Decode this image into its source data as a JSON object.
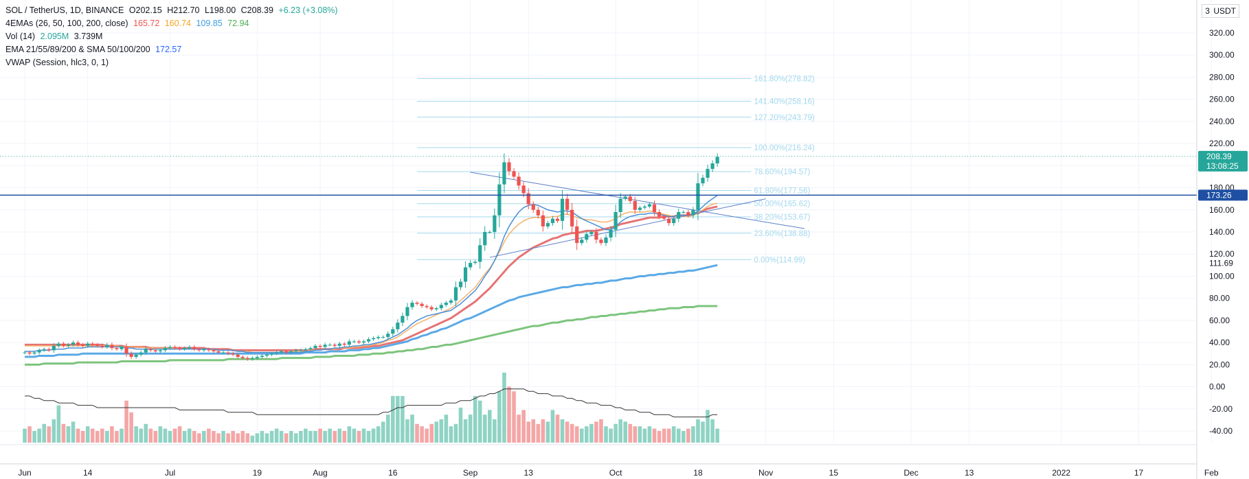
{
  "legend": {
    "symbol": "SOL / TetherUS, 1D, BINANCE",
    "open": "O202.15",
    "high": "H212.70",
    "low": "L198.00",
    "close": "C208.39",
    "change": "+6.23 (+3.08%)",
    "ema4_label": "4EMAs (26, 50, 100, 200, close)",
    "ema4_values": [
      "165.72",
      "160.74",
      "109.85",
      "72.94"
    ],
    "vol_label": "Vol (14)",
    "vol_values": [
      "2.095M",
      "3.739M"
    ],
    "ema_sma_label": "EMA 21/55/89/200 & SMA 50/100/200",
    "ema_sma_value": "172.57",
    "vwap_label": "VWAP (Session, hlc3, 0, 1)"
  },
  "currency": {
    "prefix": "3",
    "unit": "USDT"
  },
  "colors": {
    "up": "#26a69a",
    "down": "#ef5350",
    "vol_up": "#8fd3c4",
    "vol_down": "#f4a6a6",
    "ema_red": "#e57373",
    "ema_orange": "#f5b26b",
    "ema_blue": "#5aa9e6",
    "ema_green": "#7cc47c",
    "fib": "#a3d8ee",
    "hline": "#1e4fa3",
    "trend": "#5b7ec8",
    "vol_ma": "#333333"
  },
  "chart_data": {
    "type": "candlestick",
    "symbol": "SOL / TetherUS",
    "timeframe": "1D",
    "exchange": "BINANCE",
    "y_ticks": [
      "320.00",
      "300.00",
      "280.00",
      "260.00",
      "240.00",
      "220.00",
      "200.00",
      "180.00",
      "160.00",
      "140.00",
      "120.00",
      "100.00",
      "80.00",
      "60.00",
      "40.00",
      "20.00",
      "0.00",
      "-20.00",
      "-40.00"
    ],
    "y_tick_values": [
      320,
      300,
      280,
      260,
      240,
      220,
      200,
      180,
      160,
      140,
      120,
      100,
      80,
      60,
      40,
      20,
      0,
      -20,
      -40
    ],
    "ylim": [
      -50,
      335
    ],
    "x_ticks": [
      {
        "label": "Jun",
        "day": 0
      },
      {
        "label": "14",
        "day": 13
      },
      {
        "label": "Jul",
        "day": 30
      },
      {
        "label": "19",
        "day": 48
      },
      {
        "label": "Aug",
        "day": 61
      },
      {
        "label": "16",
        "day": 76
      },
      {
        "label": "Sep",
        "day": 92
      },
      {
        "label": "13",
        "day": 104
      },
      {
        "label": "Oct",
        "day": 122
      },
      {
        "label": "18",
        "day": 139
      },
      {
        "label": "Nov",
        "day": 153
      },
      {
        "label": "15",
        "day": 167
      },
      {
        "label": "Dec",
        "day": 183
      },
      {
        "label": "13",
        "day": 195
      },
      {
        "label": "2022",
        "day": 214
      },
      {
        "label": "17",
        "day": 230
      },
      {
        "label": "Feb",
        "day": 245
      }
    ],
    "x_range_days": [
      -4,
      252
    ],
    "price_labels": [
      {
        "label": "208.39",
        "sub": "13:08:25",
        "value": 208.39,
        "color": "#26a69a"
      },
      {
        "label": "173.26",
        "value": 173.26,
        "color": "#1e4fa3"
      },
      {
        "label": "111.69",
        "value": 111.69,
        "color": "none"
      }
    ],
    "horizontal_line": 173.26,
    "last_price": 208.39,
    "fib_levels": [
      {
        "label": "161.80%(278.82)",
        "value": 278.82
      },
      {
        "label": "141.40%(258.16)",
        "value": 258.16
      },
      {
        "label": "127.20%(243.79)",
        "value": 243.79
      },
      {
        "label": "100.00%(216.24)",
        "value": 216.24
      },
      {
        "label": "78.60%(194.57)",
        "value": 194.57
      },
      {
        "label": "61.80%(177.56)",
        "value": 177.56
      },
      {
        "label": "50.00%(165.62)",
        "value": 165.62
      },
      {
        "label": "38.20%(153.67)",
        "value": 153.67
      },
      {
        "label": "23.60%(138.88)",
        "value": 138.88
      },
      {
        "label": "0.00%(114.99)",
        "value": 114.99
      }
    ],
    "fib_x_days": [
      81,
      150
    ],
    "trendlines": [
      {
        "x1": 92,
        "y1": 194,
        "x2": 161,
        "y2": 143
      },
      {
        "x1": 96,
        "y1": 117,
        "x2": 153,
        "y2": 170
      }
    ],
    "candles_close": [
      31,
      30,
      31,
      33,
      34,
      33,
      37,
      39,
      37,
      38,
      40,
      38,
      37,
      39,
      38,
      37,
      36,
      38,
      35,
      34,
      36,
      30,
      27,
      29,
      31,
      34,
      33,
      32,
      33,
      35,
      36,
      35,
      34,
      35,
      36,
      34,
      33,
      34,
      33,
      32,
      31,
      31,
      30,
      29,
      27,
      26,
      25,
      26,
      27,
      28,
      29,
      30,
      31,
      32,
      31,
      32,
      33,
      33,
      34,
      35,
      37,
      36,
      38,
      38,
      37,
      39,
      38,
      41,
      41,
      40,
      41,
      43,
      44,
      45,
      45,
      48,
      52,
      58,
      64,
      72,
      76,
      75,
      73,
      72,
      70,
      71,
      74,
      76,
      78,
      90,
      95,
      108,
      112,
      113,
      128,
      140,
      140,
      155,
      183,
      203,
      195,
      190,
      182,
      175,
      165,
      160,
      155,
      145,
      148,
      152,
      150,
      170,
      160,
      145,
      130,
      133,
      138,
      140,
      133,
      130,
      135,
      142,
      158,
      170,
      172,
      168,
      160,
      162,
      163,
      165,
      158,
      154,
      152,
      148,
      152,
      158,
      158,
      155,
      160,
      184,
      189,
      197,
      202,
      208
    ],
    "ema_red_values": [
      38,
      38,
      38,
      38,
      38,
      38,
      38,
      38,
      38,
      38,
      38,
      38,
      38,
      38,
      38,
      38,
      38,
      37,
      37,
      37,
      37,
      36,
      36,
      36,
      36,
      36,
      35,
      35,
      35,
      35,
      35,
      35,
      35,
      35,
      35,
      35,
      35,
      35,
      34,
      34,
      34,
      34,
      34,
      33,
      33,
      33,
      33,
      33,
      33,
      33,
      33,
      33,
      33,
      33,
      33,
      33,
      33,
      33,
      33,
      33,
      34,
      34,
      34,
      34,
      34,
      34,
      35,
      35,
      35,
      35,
      36,
      36,
      37,
      37,
      38,
      39,
      40,
      41,
      42,
      44,
      46,
      48,
      50,
      52,
      54,
      56,
      58,
      60,
      62,
      65,
      68,
      71,
      74,
      77,
      81,
      85,
      89,
      94,
      99,
      104,
      109,
      113,
      117,
      120,
      123,
      126,
      128,
      130,
      132,
      134,
      135,
      137,
      138,
      139,
      139,
      140,
      141,
      141,
      141,
      142,
      143,
      144,
      145,
      147,
      148,
      149,
      150,
      151,
      152,
      153,
      153,
      153,
      154,
      154,
      154,
      155,
      155,
      155,
      156,
      157,
      159,
      161,
      162,
      163
    ],
    "ema_orange_values": [
      37,
      37,
      37,
      37,
      37,
      37,
      37,
      37,
      37,
      37,
      37,
      37,
      37,
      37,
      37,
      37,
      37,
      37,
      37,
      37,
      36,
      36,
      36,
      36,
      36,
      35,
      35,
      35,
      35,
      35,
      35,
      35,
      34,
      34,
      34,
      34,
      34,
      34,
      34,
      33,
      33,
      33,
      33,
      33,
      32,
      32,
      32,
      31,
      31,
      31,
      31,
      31,
      31,
      31,
      31,
      32,
      32,
      32,
      32,
      33,
      33,
      33,
      34,
      34,
      34,
      35,
      35,
      35,
      36,
      36,
      37,
      37,
      38,
      39,
      40,
      42,
      43,
      45,
      48,
      51,
      54,
      57,
      59,
      61,
      63,
      65,
      67,
      69,
      71,
      74,
      78,
      82,
      86,
      90,
      96,
      102,
      107,
      114,
      122,
      131,
      138,
      143,
      147,
      150,
      152,
      153,
      153,
      153,
      153,
      154,
      154,
      156,
      156,
      155,
      153,
      152,
      151,
      151,
      150,
      149,
      149,
      150,
      152,
      155,
      157,
      158,
      158,
      158,
      158,
      159,
      158,
      157,
      156,
      155,
      154,
      154,
      154,
      154,
      155,
      157,
      160,
      163,
      165,
      166
    ],
    "ema_blue_values": [
      27,
      27,
      27,
      28,
      28,
      28,
      28,
      29,
      29,
      29,
      29,
      29,
      30,
      30,
      30,
      30,
      30,
      30,
      30,
      30,
      30,
      30,
      30,
      30,
      30,
      30,
      30,
      30,
      30,
      30,
      30,
      30,
      30,
      30,
      30,
      30,
      30,
      30,
      30,
      30,
      30,
      30,
      30,
      30,
      30,
      30,
      30,
      30,
      30,
      30,
      30,
      30,
      30,
      30,
      30,
      30,
      30,
      30,
      31,
      31,
      31,
      31,
      31,
      32,
      32,
      32,
      32,
      33,
      33,
      33,
      34,
      34,
      35,
      35,
      36,
      37,
      38,
      39,
      40,
      41,
      43,
      44,
      46,
      47,
      49,
      50,
      52,
      53,
      55,
      57,
      59,
      61,
      62,
      64,
      66,
      68,
      70,
      72,
      74,
      76,
      78,
      79,
      81,
      82,
      83,
      84,
      85,
      86,
      87,
      88,
      89,
      90,
      90,
      91,
      92,
      92,
      93,
      93,
      94,
      94,
      95,
      96,
      96,
      97,
      98,
      98,
      99,
      100,
      100,
      101,
      101,
      102,
      102,
      103,
      103,
      104,
      104,
      105,
      105,
      106,
      107,
      108,
      109,
      110
    ],
    "ema_green_values": [
      20,
      20,
      20,
      20,
      21,
      21,
      21,
      21,
      21,
      21,
      21,
      22,
      22,
      22,
      22,
      22,
      22,
      22,
      22,
      22,
      23,
      23,
      23,
      23,
      23,
      23,
      23,
      23,
      23,
      23,
      24,
      24,
      24,
      24,
      24,
      24,
      24,
      24,
      24,
      24,
      24,
      24,
      25,
      25,
      25,
      25,
      25,
      25,
      25,
      25,
      25,
      25,
      25,
      26,
      26,
      26,
      26,
      26,
      26,
      26,
      27,
      27,
      27,
      27,
      28,
      28,
      28,
      28,
      28,
      29,
      29,
      29,
      30,
      30,
      30,
      31,
      31,
      32,
      32,
      33,
      33,
      34,
      34,
      35,
      36,
      36,
      37,
      38,
      38,
      39,
      40,
      41,
      42,
      43,
      44,
      45,
      46,
      47,
      48,
      49,
      50,
      51,
      52,
      53,
      54,
      55,
      55,
      56,
      57,
      58,
      58,
      59,
      60,
      60,
      61,
      61,
      62,
      63,
      63,
      64,
      64,
      65,
      65,
      66,
      66,
      67,
      67,
      68,
      68,
      69,
      69,
      70,
      70,
      71,
      71,
      71,
      72,
      72,
      72,
      73,
      73,
      73,
      73,
      73
    ],
    "ema_blue_fast_values": [
      32,
      32,
      32,
      33,
      33,
      33,
      34,
      34,
      34,
      35,
      35,
      35,
      35,
      36,
      36,
      36,
      36,
      36,
      36,
      36,
      36,
      35,
      35,
      34,
      34,
      34,
      34,
      34,
      34,
      34,
      34,
      34,
      34,
      34,
      34,
      34,
      34,
      34,
      34,
      34,
      33,
      33,
      33,
      33,
      32,
      32,
      31,
      31,
      31,
      31,
      31,
      31,
      31,
      31,
      31,
      31,
      31,
      31,
      32,
      32,
      33,
      33,
      34,
      34,
      35,
      35,
      36,
      36,
      37,
      37,
      38,
      38,
      39,
      40,
      41,
      43,
      45,
      47,
      50,
      53,
      57,
      60,
      62,
      64,
      65,
      66,
      67,
      68,
      69,
      72,
      75,
      79,
      83,
      87,
      93,
      100,
      106,
      114,
      124,
      136,
      145,
      152,
      158,
      162,
      164,
      165,
      164,
      162,
      160,
      159,
      158,
      159,
      159,
      158,
      155,
      152,
      150,
      148,
      146,
      144,
      142,
      142,
      145,
      149,
      152,
      154,
      155,
      156,
      156,
      157,
      157,
      156,
      155,
      154,
      154,
      155,
      155,
      155,
      156,
      159,
      163,
      167,
      170,
      173
    ],
    "volume_scale_note": "volume pane bottom ~ -45, scaled bars",
    "volume": [
      6,
      7,
      5,
      6,
      8,
      7,
      10,
      16,
      8,
      7,
      9,
      6,
      5,
      7,
      6,
      5,
      6,
      5,
      7,
      5,
      6,
      18,
      13,
      7,
      6,
      8,
      6,
      5,
      7,
      6,
      5,
      6,
      7,
      5,
      6,
      5,
      4,
      5,
      6,
      5,
      4,
      5,
      4,
      5,
      4,
      5,
      4,
      3,
      4,
      5,
      4,
      5,
      6,
      5,
      4,
      5,
      4,
      5,
      6,
      5,
      5,
      6,
      5,
      6,
      5,
      6,
      5,
      7,
      6,
      5,
      6,
      5,
      6,
      7,
      9,
      12,
      20,
      20,
      20,
      10,
      12,
      8,
      7,
      6,
      8,
      9,
      10,
      12,
      7,
      8,
      15,
      10,
      12,
      20,
      18,
      12,
      14,
      10,
      22,
      30,
      24,
      22,
      12,
      14,
      9,
      10,
      8,
      10,
      9,
      14,
      12,
      10,
      9,
      8,
      7,
      6,
      7,
      8,
      9,
      10,
      7,
      6,
      8,
      10,
      9,
      8,
      7,
      7,
      6,
      7,
      6,
      5,
      6,
      6,
      7,
      6,
      5,
      6,
      7,
      10,
      9,
      14,
      10,
      6
    ],
    "volume_ma": [
      20,
      20,
      19,
      19,
      18,
      18,
      18,
      17,
      17,
      17,
      17,
      16,
      16,
      16,
      16,
      15,
      15,
      15,
      15,
      15,
      15,
      15,
      15,
      15,
      15,
      15,
      15,
      15,
      15,
      15,
      15,
      15,
      14,
      14,
      14,
      14,
      14,
      14,
      14,
      14,
      14,
      14,
      13,
      13,
      13,
      13,
      13,
      13,
      12,
      12,
      12,
      12,
      12,
      12,
      12,
      12,
      12,
      12,
      12,
      12,
      12,
      12,
      12,
      12,
      12,
      12,
      12,
      12,
      12,
      12,
      12,
      12,
      12,
      12,
      13,
      13,
      14,
      15,
      15,
      16,
      16,
      16,
      16,
      16,
      16,
      16,
      16,
      17,
      17,
      17,
      18,
      18,
      18,
      19,
      20,
      20,
      21,
      21,
      22,
      23,
      23,
      23,
      23,
      23,
      22,
      22,
      21,
      21,
      21,
      20,
      20,
      20,
      19,
      19,
      18,
      18,
      17,
      17,
      17,
      16,
      16,
      16,
      15,
      15,
      14,
      14,
      14,
      13,
      13,
      13,
      12,
      12,
      12,
      12,
      11,
      11,
      11,
      11,
      11,
      11,
      11,
      11,
      12,
      12
    ]
  }
}
